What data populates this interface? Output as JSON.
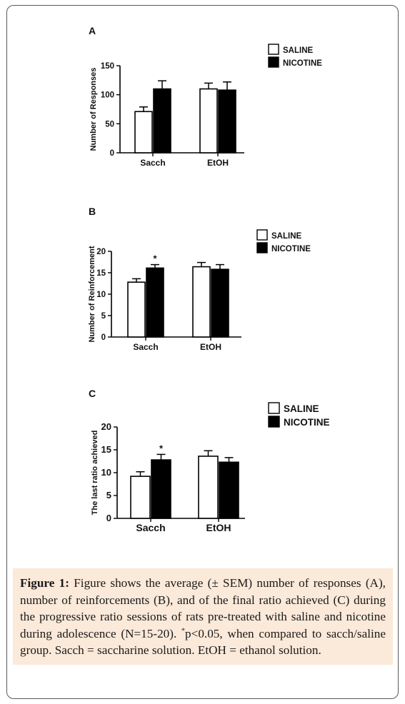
{
  "chart_data": [
    {
      "panel_letter": "A",
      "type": "bar",
      "ylabel": "Number of Responses",
      "ylim": [
        0,
        150
      ],
      "yticks": [
        0,
        50,
        100,
        150
      ],
      "categories": [
        "Sacch",
        "EtOH"
      ],
      "series": [
        {
          "name": "SALINE",
          "fill": "#ffffff",
          "values": [
            71,
            110
          ],
          "errors": [
            8,
            10
          ]
        },
        {
          "name": "NICOTINE",
          "fill": "#000000",
          "values": [
            110,
            108
          ],
          "errors": [
            14,
            14
          ]
        }
      ],
      "annotations": [],
      "legend_position": "top-right"
    },
    {
      "panel_letter": "B",
      "type": "bar",
      "ylabel": "Number of Reinforcement",
      "ylim": [
        0,
        20
      ],
      "yticks": [
        0,
        5,
        10,
        15,
        20
      ],
      "categories": [
        "Sacch",
        "EtOH"
      ],
      "series": [
        {
          "name": "SALINE",
          "fill": "#ffffff",
          "values": [
            12.8,
            16.4
          ],
          "errors": [
            0.8,
            1.0
          ]
        },
        {
          "name": "NICOTINE",
          "fill": "#000000",
          "values": [
            16.1,
            15.8
          ],
          "errors": [
            0.8,
            1.1
          ]
        }
      ],
      "annotations": [
        {
          "text": "*",
          "category": "Sacch",
          "series": "NICOTINE"
        }
      ],
      "legend_position": "top-right"
    },
    {
      "panel_letter": "C",
      "type": "bar",
      "ylabel": "The last ratio achieved",
      "ylim": [
        0,
        20
      ],
      "yticks": [
        0,
        5,
        10,
        15,
        20
      ],
      "categories": [
        "Sacch",
        "EtOH"
      ],
      "series": [
        {
          "name": "SALINE",
          "fill": "#ffffff",
          "values": [
            9.2,
            13.6
          ],
          "errors": [
            1.0,
            1.2
          ]
        },
        {
          "name": "NICOTINE",
          "fill": "#000000",
          "values": [
            12.8,
            12.3
          ],
          "errors": [
            1.2,
            1.0
          ]
        }
      ],
      "annotations": [
        {
          "text": "*",
          "category": "Sacch",
          "series": "NICOTINE"
        }
      ],
      "legend_position": "top-right"
    }
  ],
  "caption": {
    "label": "Figure 1:",
    "text_before_sup": " Figure shows the average (± SEM) number of responses (A), number of reinforcements (B), and of the final ratio achieved (C) during the progressive ratio sessions of rats pre-treated with saline and nicotine during adolescence (N=15-20). ",
    "sup": "*",
    "text_after_sup": "p<0.05, when compared to sacch/saline group. Sacch = saccharine solution. EtOH = ethanol solution."
  }
}
